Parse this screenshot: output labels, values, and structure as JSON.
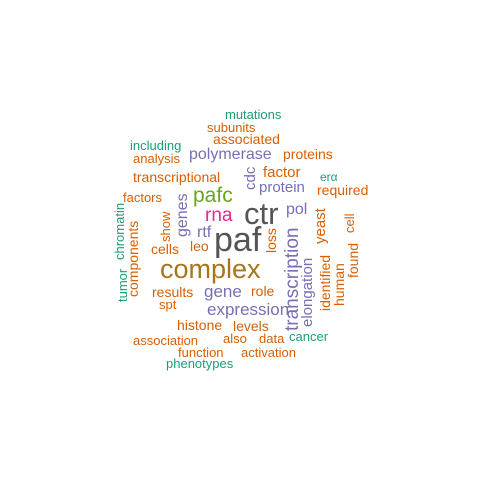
{
  "colors": {
    "teal": "#1b9e77",
    "orange": "#d95f02",
    "purple": "#7570b3",
    "magenta": "#e7298a",
    "green": "#66a61e",
    "gold": "#a6761d",
    "gray": "#555555"
  },
  "words": [
    {
      "text": "paf",
      "color": "gray"
    },
    {
      "text": "ctr",
      "color": "gray"
    },
    {
      "text": "complex",
      "color": "gold"
    },
    {
      "text": "pafc",
      "color": "green"
    },
    {
      "text": "rna",
      "color": "magenta"
    },
    {
      "text": "transcription",
      "color": "purple"
    },
    {
      "text": "expression",
      "color": "purple"
    },
    {
      "text": "gene",
      "color": "purple"
    },
    {
      "text": "polymerase",
      "color": "purple"
    },
    {
      "text": "genes",
      "color": "purple"
    },
    {
      "text": "pol",
      "color": "purple"
    },
    {
      "text": "protein",
      "color": "purple"
    },
    {
      "text": "elongation",
      "color": "purple"
    },
    {
      "text": "rtf",
      "color": "purple"
    },
    {
      "text": "cdc",
      "color": "purple"
    },
    {
      "text": "mutations",
      "color": "teal"
    },
    {
      "text": "subunits",
      "color": "orange"
    },
    {
      "text": "associated",
      "color": "orange"
    },
    {
      "text": "including",
      "color": "teal"
    },
    {
      "text": "analysis",
      "color": "orange"
    },
    {
      "text": "proteins",
      "color": "orange"
    },
    {
      "text": "transcriptional",
      "color": "orange"
    },
    {
      "text": "factor",
      "color": "orange"
    },
    {
      "text": "erα",
      "color": "teal"
    },
    {
      "text": "factors",
      "color": "orange"
    },
    {
      "text": "required",
      "color": "orange"
    },
    {
      "text": "yeast",
      "color": "orange"
    },
    {
      "text": "cell",
      "color": "orange"
    },
    {
      "text": "chromatin",
      "color": "teal"
    },
    {
      "text": "show",
      "color": "orange"
    },
    {
      "text": "components",
      "color": "orange"
    },
    {
      "text": "cells",
      "color": "orange"
    },
    {
      "text": "leo",
      "color": "orange"
    },
    {
      "text": "loss",
      "color": "orange"
    },
    {
      "text": "identified",
      "color": "orange"
    },
    {
      "text": "found",
      "color": "orange"
    },
    {
      "text": "human",
      "color": "orange"
    },
    {
      "text": "tumor",
      "color": "teal"
    },
    {
      "text": "results",
      "color": "orange"
    },
    {
      "text": "role",
      "color": "orange"
    },
    {
      "text": "spt",
      "color": "orange"
    },
    {
      "text": "histone",
      "color": "orange"
    },
    {
      "text": "levels",
      "color": "orange"
    },
    {
      "text": "association",
      "color": "orange"
    },
    {
      "text": "also",
      "color": "orange"
    },
    {
      "text": "data",
      "color": "orange"
    },
    {
      "text": "cancer",
      "color": "teal"
    },
    {
      "text": "function",
      "color": "orange"
    },
    {
      "text": "activation",
      "color": "orange"
    },
    {
      "text": "phenotypes",
      "color": "teal"
    }
  ]
}
